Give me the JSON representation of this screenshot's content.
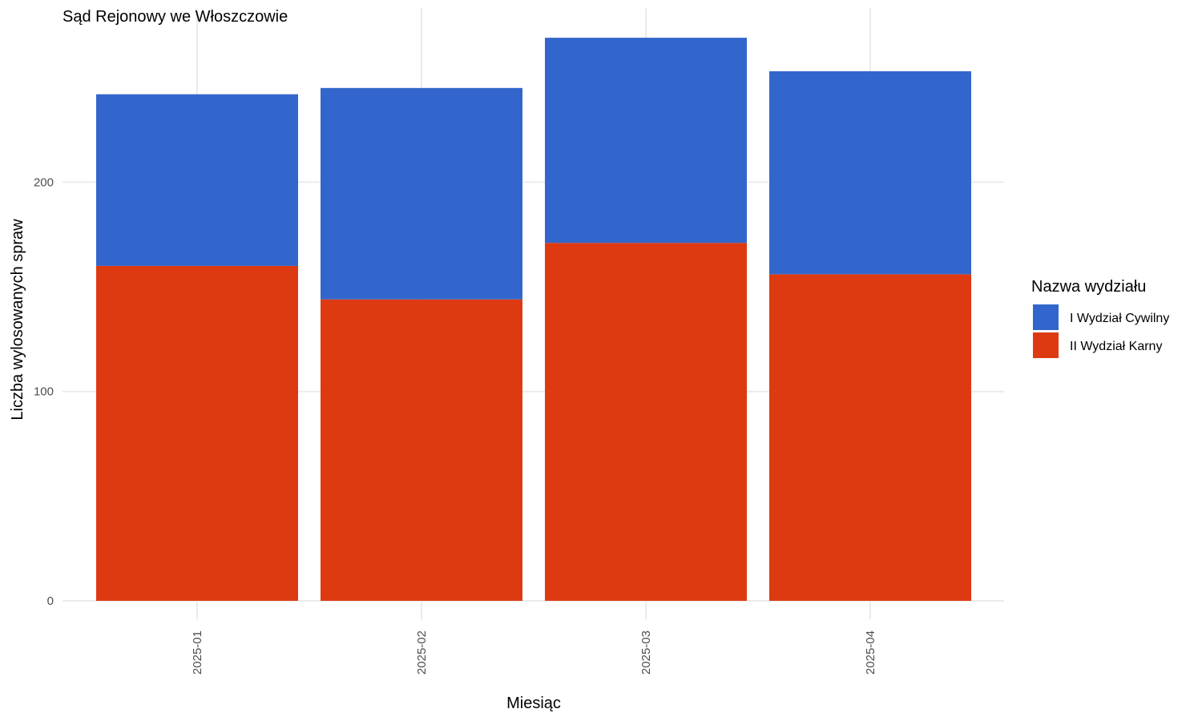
{
  "chart_data": {
    "type": "bar",
    "stacked": true,
    "title": "Sąd Rejonowy we Włoszczowie",
    "xlabel": "Miesiąc",
    "ylabel": "Liczba wylosowanych spraw",
    "categories": [
      "2025-01",
      "2025-02",
      "2025-03",
      "2025-04"
    ],
    "series": [
      {
        "name": "II Wydział Karny",
        "color": "#DE3A12",
        "values": [
          160,
          144,
          171,
          156
        ]
      },
      {
        "name": "I Wydział Cywilny",
        "color": "#3366CC",
        "values": [
          82,
          101,
          98,
          97
        ]
      }
    ],
    "ylim": [
      0,
      283
    ],
    "yticks": [
      0,
      100,
      200
    ],
    "grid": true,
    "legend": {
      "title": "Nazwa wydziału",
      "placement": "right",
      "entries": [
        {
          "name": "I Wydział Cywilny",
          "color": "#3366CC"
        },
        {
          "name": "II Wydział Karny",
          "color": "#DE3A12"
        }
      ]
    }
  }
}
